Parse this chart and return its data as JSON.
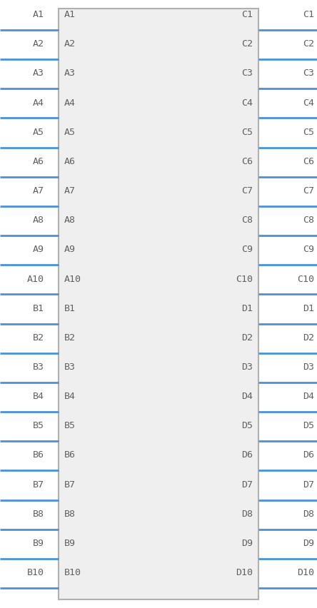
{
  "bg_color": "#ffffff",
  "box_color": "#b0b0b0",
  "pin_line_color": "#4a90d9",
  "text_color": "#606060",
  "left_pins": [
    "A1",
    "A2",
    "A3",
    "A4",
    "A5",
    "A6",
    "A7",
    "A8",
    "A9",
    "A10",
    "B1",
    "B2",
    "B3",
    "B4",
    "B5",
    "B6",
    "B7",
    "B8",
    "B9",
    "B10"
  ],
  "right_pins": [
    "C1",
    "C2",
    "C3",
    "C4",
    "C5",
    "C6",
    "C7",
    "C8",
    "C9",
    "C10",
    "D1",
    "D2",
    "D3",
    "D4",
    "D5",
    "D6",
    "D7",
    "D8",
    "D9",
    "D10"
  ],
  "left_inner": [
    "A1",
    "A2",
    "A3",
    "A4",
    "A5",
    "A6",
    "A7",
    "A8",
    "A9",
    "A10",
    "B1",
    "B2",
    "B3",
    "B4",
    "B5",
    "B6",
    "B7",
    "B8",
    "B9",
    "B10"
  ],
  "right_inner": [
    "C1",
    "C2",
    "C3",
    "C4",
    "C5",
    "C6",
    "C7",
    "C8",
    "C9",
    "C10",
    "D1",
    "D2",
    "D3",
    "D4",
    "D5",
    "D6",
    "D7",
    "D8",
    "D9",
    "D10"
  ],
  "pin_count": 20,
  "fig_width": 4.44,
  "fig_height": 8.52,
  "dpi": 100
}
